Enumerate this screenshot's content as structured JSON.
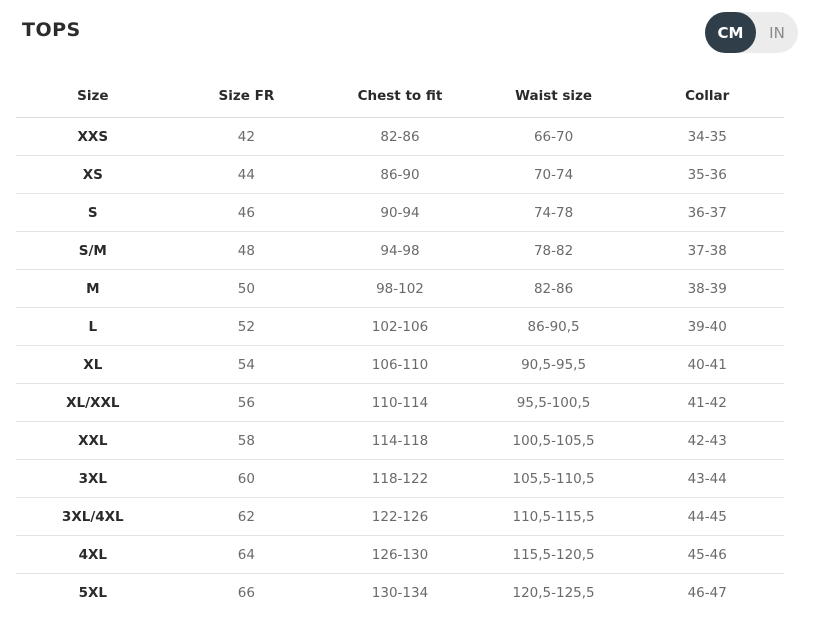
{
  "title": "TOPS",
  "units": {
    "active": "CM",
    "inactive": "IN"
  },
  "table": {
    "headers": [
      "Size",
      "Size FR",
      "Chest to fit",
      "Waist size",
      "Collar"
    ],
    "rows": [
      [
        "XXS",
        "42",
        "82-86",
        "66-70",
        "34-35"
      ],
      [
        "XS",
        "44",
        "86-90",
        "70-74",
        "35-36"
      ],
      [
        "S",
        "46",
        "90-94",
        "74-78",
        "36-37"
      ],
      [
        "S/M",
        "48",
        "94-98",
        "78-82",
        "37-38"
      ],
      [
        "M",
        "50",
        "98-102",
        "82-86",
        "38-39"
      ],
      [
        "L",
        "52",
        "102-106",
        "86-90,5",
        "39-40"
      ],
      [
        "XL",
        "54",
        "106-110",
        "90,5-95,5",
        "40-41"
      ],
      [
        "XL/XXL",
        "56",
        "110-114",
        "95,5-100,5",
        "41-42"
      ],
      [
        "XXL",
        "58",
        "114-118",
        "100,5-105,5",
        "42-43"
      ],
      [
        "3XL",
        "60",
        "118-122",
        "105,5-110,5",
        "43-44"
      ],
      [
        "3XL/4XL",
        "62",
        "122-126",
        "110,5-115,5",
        "44-45"
      ],
      [
        "4XL",
        "64",
        "126-130",
        "115,5-120,5",
        "45-46"
      ],
      [
        "5XL",
        "66",
        "130-134",
        "120,5-125,5",
        "46-47"
      ]
    ]
  }
}
